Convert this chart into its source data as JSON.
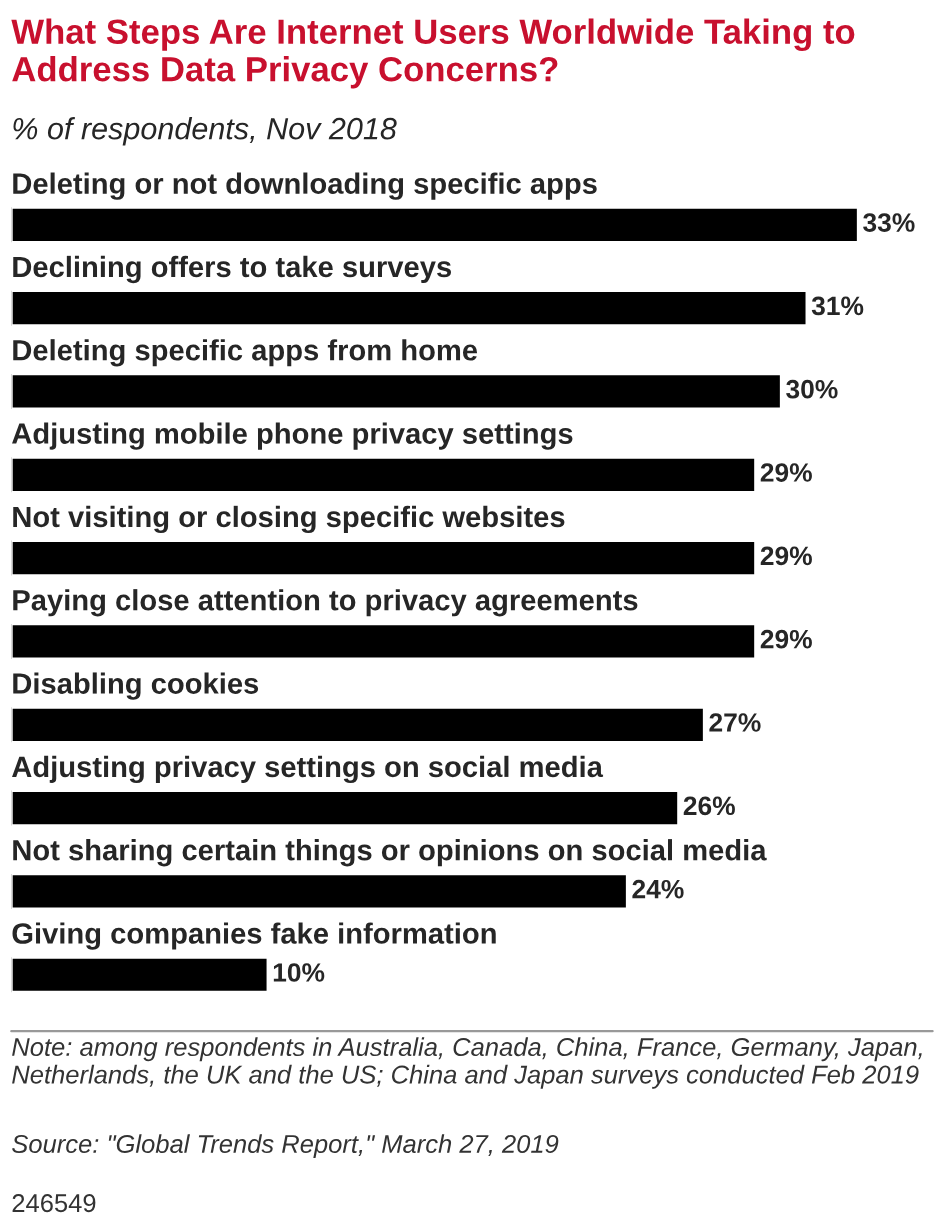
{
  "chart_data": {
    "type": "bar",
    "orientation": "horizontal",
    "title": "What Steps Are Internet Users Worldwide Taking to Address Data Privacy Concerns?",
    "subtitle": "% of respondents, Nov 2018",
    "categories": [
      "Deleting or not downloading specific apps",
      "Declining offers to take surveys",
      "Deleting specific apps from home",
      "Adjusting mobile phone privacy settings",
      "Not visiting or closing specific websites",
      "Paying close attention to privacy agreements",
      "Disabling cookies",
      "Adjusting privacy settings on social media",
      "Not sharing certain things or opinions on social media",
      "Giving companies fake information"
    ],
    "values": [
      33,
      31,
      30,
      29,
      29,
      29,
      27,
      26,
      24,
      10
    ],
    "value_labels": [
      "33%",
      "31%",
      "30%",
      "29%",
      "29%",
      "29%",
      "27%",
      "26%",
      "24%",
      "10%"
    ],
    "color": "#000000",
    "annotations": [
      "Note: among respondents in Australia, Canada, China, France, Germany, Japan, Netherlands, the UK and the US; China and Japan surveys conducted Feb 2019",
      "Source: \"Global Trends Report,\" March 27, 2019",
      "246549"
    ]
  }
}
